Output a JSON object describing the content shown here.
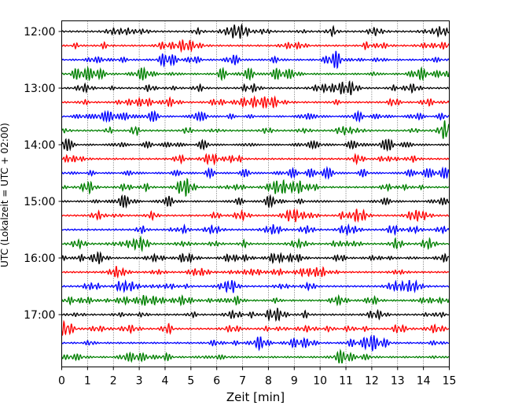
{
  "chart_data": {
    "type": "line",
    "xlabel": "Zeit  [min]",
    "ylabel": "UTC (Lokalzeit = UTC + 02:00)",
    "xlim": [
      0,
      15
    ],
    "x_ticks": [
      0,
      1,
      2,
      3,
      4,
      5,
      6,
      7,
      8,
      9,
      10,
      11,
      12,
      13,
      14,
      15
    ],
    "y_tick_labels": [
      "12:00",
      "13:00",
      "14:00",
      "15:00",
      "16:00",
      "17:00"
    ],
    "trace_interval_minutes": 15,
    "start_time": "12:00",
    "trace_count": 24,
    "grid": "vertical-dotted",
    "trace_colors": [
      "#000000",
      "#ff0000",
      "#0000ff",
      "#008000"
    ]
  }
}
